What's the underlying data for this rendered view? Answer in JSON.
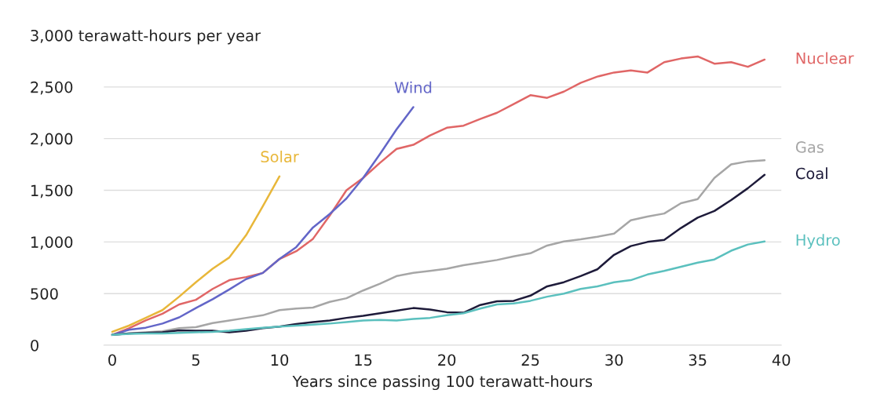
{
  "chart_data": {
    "type": "line",
    "xlabel": "Years since passing 100 terawatt-hours",
    "xlim": [
      -0.5,
      40
    ],
    "xticks": [
      0,
      5,
      10,
      15,
      20,
      25,
      30,
      35,
      40
    ],
    "ylim": [
      0,
      3000
    ],
    "yticks": [
      0,
      500,
      {
        "value": 1000,
        "label": "1,000"
      },
      {
        "value": 1500,
        "label": "1,500"
      },
      {
        "value": 2000,
        "label": "2,000"
      },
      {
        "value": 2500,
        "label": "2,500"
      },
      {
        "value": 3000,
        "label": "3,000 terawatt-hours per year"
      }
    ],
    "grid": "y",
    "legend": false,
    "marker": "none",
    "line_style": "solid",
    "series": [
      {
        "name": "Nuclear",
        "color": "#e06666",
        "x": [
          0,
          1,
          2,
          3,
          4,
          5,
          6,
          7,
          8,
          9,
          10,
          11,
          12,
          13,
          14,
          15,
          16,
          17,
          18,
          19,
          20,
          21,
          22,
          23,
          24,
          25,
          26,
          27,
          28,
          29,
          30,
          31,
          32,
          33,
          34,
          35,
          36,
          37,
          38,
          39
        ],
        "values": [
          100,
          165,
          240,
          305,
          395,
          440,
          545,
          630,
          660,
          700,
          835,
          910,
          1030,
          1255,
          1500,
          1620,
          1765,
          1900,
          1940,
          2030,
          2105,
          2125,
          2190,
          2250,
          2335,
          2420,
          2395,
          2455,
          2540,
          2600,
          2640,
          2660,
          2640,
          2740,
          2775,
          2795,
          2725,
          2740,
          2695,
          2765
        ]
      },
      {
        "name": "Wind",
        "color": "#6366c8",
        "x": [
          0,
          1,
          2,
          3,
          4,
          5,
          6,
          7,
          8,
          9,
          10,
          11,
          12,
          13,
          14,
          15,
          16,
          17,
          18
        ],
        "values": [
          100,
          150,
          170,
          210,
          270,
          360,
          445,
          540,
          640,
          700,
          835,
          950,
          1140,
          1270,
          1420,
          1620,
          1850,
          2090,
          2305
        ]
      },
      {
        "name": "Solar",
        "color": "#e8b73a",
        "x": [
          0,
          1,
          2,
          3,
          4,
          5,
          6,
          7,
          8,
          9,
          10
        ],
        "values": [
          130,
          190,
          265,
          340,
          470,
          610,
          740,
          850,
          1065,
          1345,
          1635
        ]
      },
      {
        "name": "Gas",
        "color": "#a6a6a6",
        "x": [
          0,
          1,
          2,
          3,
          4,
          5,
          6,
          7,
          8,
          9,
          10,
          11,
          12,
          13,
          14,
          15,
          16,
          17,
          18,
          19,
          20,
          21,
          22,
          23,
          24,
          25,
          26,
          27,
          28,
          29,
          30,
          31,
          32,
          33,
          34,
          35,
          36,
          37,
          38,
          39
        ],
        "values": [
          100,
          115,
          125,
          135,
          165,
          175,
          215,
          240,
          265,
          290,
          340,
          355,
          365,
          420,
          455,
          530,
          595,
          670,
          700,
          720,
          740,
          775,
          800,
          825,
          860,
          890,
          965,
          1005,
          1025,
          1050,
          1080,
          1210,
          1245,
          1275,
          1375,
          1415,
          1620,
          1750,
          1780,
          1790
        ]
      },
      {
        "name": "Coal",
        "color": "#1e1b3a",
        "x": [
          0,
          1,
          2,
          3,
          4,
          5,
          6,
          7,
          8,
          9,
          10,
          11,
          12,
          13,
          14,
          15,
          16,
          17,
          18,
          19,
          20,
          21,
          22,
          23,
          24,
          25,
          26,
          27,
          28,
          29,
          30,
          31,
          32,
          33,
          34,
          35,
          36,
          37,
          38,
          39
        ],
        "values": [
          100,
          115,
          120,
          125,
          145,
          140,
          140,
          125,
          140,
          165,
          180,
          205,
          225,
          240,
          265,
          285,
          310,
          335,
          360,
          345,
          320,
          315,
          390,
          425,
          430,
          480,
          570,
          610,
          670,
          735,
          875,
          960,
          1000,
          1020,
          1135,
          1235,
          1300,
          1405,
          1520,
          1650
        ]
      },
      {
        "name": "Hydro",
        "color": "#5bc0be",
        "x": [
          0,
          1,
          2,
          3,
          4,
          5,
          6,
          7,
          8,
          9,
          10,
          11,
          12,
          13,
          14,
          15,
          16,
          17,
          18,
          19,
          20,
          21,
          22,
          23,
          24,
          25,
          26,
          27,
          28,
          29,
          30,
          31,
          32,
          33,
          34,
          35,
          36,
          37,
          38,
          39
        ],
        "values": [
          100,
          110,
          115,
          115,
          120,
          125,
          130,
          140,
          155,
          170,
          180,
          190,
          200,
          210,
          225,
          240,
          245,
          240,
          255,
          265,
          290,
          310,
          355,
          395,
          405,
          430,
          470,
          500,
          545,
          570,
          610,
          630,
          685,
          720,
          760,
          800,
          830,
          915,
          975,
          1005
        ]
      }
    ]
  }
}
